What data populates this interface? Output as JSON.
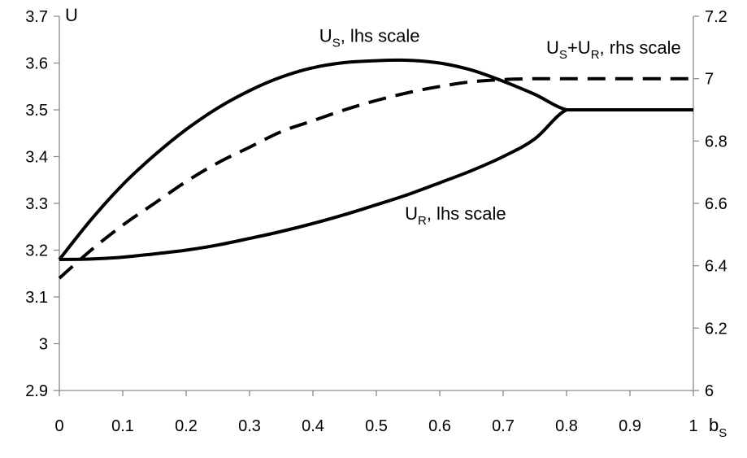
{
  "chart_data": {
    "type": "line",
    "x_axis": {
      "title": "b",
      "title_sub": "S",
      "range": [
        0,
        1
      ],
      "ticks": [
        0,
        0.1,
        0.2,
        0.3,
        0.4,
        0.5,
        0.6,
        0.7,
        0.8,
        0.9,
        1
      ],
      "tick_labels": [
        "0",
        "0.1",
        "0.2",
        "0.3",
        "0.4",
        "0.5",
        "0.6",
        "0.7",
        "0.8",
        "0.9",
        "1"
      ]
    },
    "y_axis_left": {
      "title": "U",
      "range": [
        2.9,
        3.7
      ],
      "ticks": [
        2.9,
        3.0,
        3.1,
        3.2,
        3.3,
        3.4,
        3.5,
        3.6,
        3.7
      ],
      "tick_labels": [
        "2.9",
        "3",
        "3.1",
        "3.2",
        "3.3",
        "3.4",
        "3.5",
        "3.6",
        "3.7"
      ]
    },
    "y_axis_right": {
      "range": [
        6,
        7.2
      ],
      "ticks": [
        6,
        6.2,
        6.4,
        6.6,
        6.8,
        7,
        7.2
      ],
      "tick_labels": [
        "6",
        "6.2",
        "6.4",
        "6.6",
        "6.8",
        "7",
        "7.2"
      ]
    },
    "grid": false,
    "series": [
      {
        "axis": "left",
        "style": "solid",
        "x": [
          0,
          0.05,
          0.1,
          0.15,
          0.2,
          0.25,
          0.3,
          0.35,
          0.4,
          0.45,
          0.5,
          0.55,
          0.6,
          0.65,
          0.7,
          0.75,
          0.8,
          0.85,
          0.9,
          0.95,
          1.0
        ],
        "y": [
          3.18,
          3.265,
          3.34,
          3.403,
          3.458,
          3.504,
          3.541,
          3.57,
          3.59,
          3.601,
          3.605,
          3.606,
          3.6,
          3.585,
          3.561,
          3.533,
          3.5,
          3.5,
          3.5,
          3.5,
          3.5
        ]
      },
      {
        "axis": "left",
        "style": "solid",
        "x": [
          0,
          0.05,
          0.1,
          0.15,
          0.2,
          0.25,
          0.3,
          0.35,
          0.4,
          0.45,
          0.5,
          0.55,
          0.6,
          0.65,
          0.7,
          0.75,
          0.8,
          0.85,
          0.9,
          0.95,
          1.0
        ],
        "y": [
          3.18,
          3.181,
          3.185,
          3.192,
          3.2,
          3.211,
          3.225,
          3.24,
          3.257,
          3.276,
          3.297,
          3.319,
          3.344,
          3.37,
          3.4,
          3.438,
          3.5,
          3.5,
          3.5,
          3.5,
          3.5
        ]
      },
      {
        "axis": "right",
        "style": "dashed",
        "x": [
          0,
          0.05,
          0.1,
          0.15,
          0.2,
          0.25,
          0.3,
          0.35,
          0.4,
          0.45,
          0.5,
          0.55,
          0.6,
          0.65,
          0.7,
          0.75,
          0.8,
          0.85,
          0.9,
          0.95,
          1.0
        ],
        "y": [
          6.36,
          6.45,
          6.53,
          6.6,
          6.67,
          6.73,
          6.78,
          6.83,
          6.865,
          6.9,
          6.93,
          6.955,
          6.975,
          6.99,
          6.997,
          7.0,
          7.0,
          7.0,
          7.0,
          7.0,
          7.0
        ]
      }
    ],
    "annotations": [
      {
        "main": "U",
        "sub": "S",
        "rest": ", lhs scale",
        "x": 0.41,
        "y_left": 3.645
      },
      {
        "main": "U",
        "sub": "S",
        "mid": "+U",
        "sub2": "R",
        "rest": ", rhs scale",
        "x": 0.768,
        "y_left": 3.62
      },
      {
        "main": "U",
        "sub": "R",
        "rest": ", lhs scale",
        "x": 0.545,
        "y_left": 3.265
      }
    ]
  }
}
